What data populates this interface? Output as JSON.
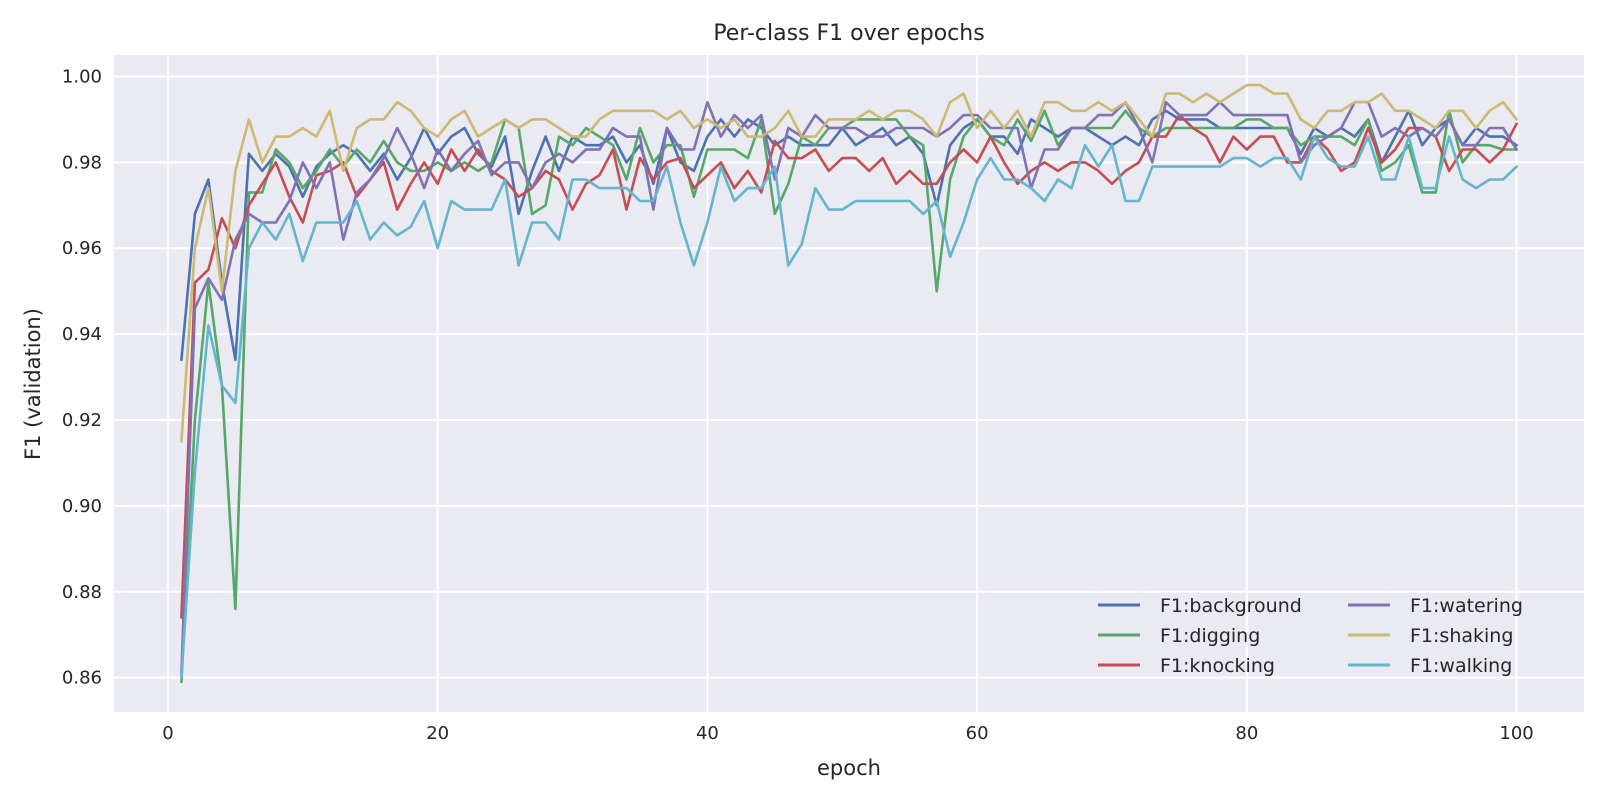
{
  "chart_data": {
    "type": "line",
    "title": "Per-class F1 over epochs",
    "xlabel": "epoch",
    "ylabel": "F1 (validation)",
    "xlim": [
      -4,
      105
    ],
    "ylim": [
      0.852,
      1.005
    ],
    "xticks": [
      0,
      20,
      40,
      60,
      80,
      100
    ],
    "yticks": [
      0.86,
      0.88,
      0.9,
      0.92,
      0.94,
      0.96,
      0.98,
      1.0
    ],
    "xtick_labels": [
      "0",
      "20",
      "40",
      "60",
      "80",
      "100"
    ],
    "ytick_labels": [
      "0.86",
      "0.88",
      "0.90",
      "0.92",
      "0.94",
      "0.96",
      "0.98",
      "1.00"
    ],
    "grid": true,
    "legend_position": "lower-right",
    "legend_columns": 2,
    "x": [
      1,
      2,
      3,
      4,
      5,
      6,
      7,
      8,
      9,
      10,
      11,
      12,
      13,
      14,
      15,
      16,
      17,
      18,
      19,
      20,
      21,
      22,
      23,
      24,
      25,
      26,
      27,
      28,
      29,
      30,
      31,
      32,
      33,
      34,
      35,
      36,
      37,
      38,
      39,
      40,
      41,
      42,
      43,
      44,
      45,
      46,
      47,
      48,
      49,
      50,
      51,
      52,
      53,
      54,
      55,
      56,
      57,
      58,
      59,
      60,
      61,
      62,
      63,
      64,
      65,
      66,
      67,
      68,
      69,
      70,
      71,
      72,
      73,
      74,
      75,
      76,
      77,
      78,
      79,
      80,
      81,
      82,
      83,
      84,
      85,
      86,
      87,
      88,
      89,
      90,
      91,
      92,
      93,
      94,
      95,
      96,
      97,
      98,
      99,
      100
    ],
    "series": [
      {
        "name": "F1:background",
        "color": "#4c72b0",
        "values": [
          0.934,
          0.968,
          0.976,
          0.952,
          0.934,
          0.982,
          0.978,
          0.982,
          0.979,
          0.972,
          0.979,
          0.982,
          0.984,
          0.982,
          0.978,
          0.982,
          0.976,
          0.981,
          0.988,
          0.982,
          0.986,
          0.988,
          0.982,
          0.979,
          0.986,
          0.968,
          0.978,
          0.986,
          0.978,
          0.986,
          0.984,
          0.984,
          0.986,
          0.98,
          0.984,
          0.975,
          0.988,
          0.98,
          0.978,
          0.986,
          0.99,
          0.986,
          0.99,
          0.988,
          0.984,
          0.986,
          0.984,
          0.984,
          0.984,
          0.988,
          0.984,
          0.986,
          0.988,
          0.984,
          0.986,
          0.982,
          0.97,
          0.984,
          0.988,
          0.99,
          0.986,
          0.986,
          0.982,
          0.99,
          0.988,
          0.986,
          0.988,
          0.988,
          0.986,
          0.984,
          0.986,
          0.984,
          0.99,
          0.992,
          0.99,
          0.99,
          0.99,
          0.988,
          0.988,
          0.988,
          0.988,
          0.988,
          0.988,
          0.982,
          0.988,
          0.986,
          0.988,
          0.986,
          0.99,
          0.98,
          0.986,
          0.992,
          0.984,
          0.988,
          0.99,
          0.984,
          0.988,
          0.986,
          0.986,
          0.984
        ]
      },
      {
        "name": "F1:digging",
        "color": "#55a868",
        "values": [
          0.859,
          0.92,
          0.952,
          0.928,
          0.876,
          0.973,
          0.973,
          0.983,
          0.98,
          0.974,
          0.978,
          0.983,
          0.979,
          0.983,
          0.98,
          0.985,
          0.98,
          0.978,
          0.978,
          0.98,
          0.978,
          0.98,
          0.978,
          0.98,
          0.99,
          0.988,
          0.968,
          0.97,
          0.986,
          0.984,
          0.988,
          0.986,
          0.984,
          0.976,
          0.988,
          0.98,
          0.984,
          0.984,
          0.972,
          0.983,
          0.983,
          0.983,
          0.981,
          0.99,
          0.968,
          0.975,
          0.986,
          0.984,
          0.988,
          0.988,
          0.99,
          0.99,
          0.99,
          0.99,
          0.986,
          0.984,
          0.95,
          0.976,
          0.986,
          0.99,
          0.986,
          0.984,
          0.99,
          0.985,
          0.992,
          0.984,
          0.988,
          0.988,
          0.988,
          0.988,
          0.992,
          0.988,
          0.986,
          0.988,
          0.988,
          0.988,
          0.988,
          0.988,
          0.988,
          0.99,
          0.99,
          0.988,
          0.988,
          0.984,
          0.986,
          0.986,
          0.986,
          0.984,
          0.99,
          0.978,
          0.98,
          0.984,
          0.973,
          0.973,
          0.992,
          0.98,
          0.984,
          0.984,
          0.983,
          0.983
        ]
      },
      {
        "name": "F1:knocking",
        "color": "#c44e52",
        "values": [
          0.874,
          0.952,
          0.955,
          0.967,
          0.96,
          0.97,
          0.975,
          0.98,
          0.972,
          0.966,
          0.977,
          0.978,
          0.98,
          0.972,
          0.976,
          0.98,
          0.969,
          0.975,
          0.98,
          0.975,
          0.983,
          0.978,
          0.983,
          0.978,
          0.976,
          0.972,
          0.974,
          0.978,
          0.976,
          0.969,
          0.975,
          0.977,
          0.983,
          0.969,
          0.981,
          0.976,
          0.98,
          0.981,
          0.974,
          0.977,
          0.98,
          0.974,
          0.978,
          0.973,
          0.985,
          0.981,
          0.981,
          0.983,
          0.978,
          0.981,
          0.981,
          0.978,
          0.981,
          0.975,
          0.978,
          0.975,
          0.975,
          0.98,
          0.983,
          0.98,
          0.986,
          0.98,
          0.975,
          0.978,
          0.98,
          0.978,
          0.98,
          0.98,
          0.978,
          0.975,
          0.978,
          0.98,
          0.986,
          0.986,
          0.991,
          0.988,
          0.986,
          0.98,
          0.986,
          0.983,
          0.986,
          0.986,
          0.98,
          0.98,
          0.986,
          0.983,
          0.978,
          0.98,
          0.988,
          0.98,
          0.983,
          0.988,
          0.988,
          0.986,
          0.978,
          0.983,
          0.983,
          0.98,
          0.983,
          0.989
        ]
      },
      {
        "name": "F1:watering",
        "color": "#8172b3",
        "values": [
          0.861,
          0.946,
          0.953,
          0.948,
          0.962,
          0.968,
          0.966,
          0.966,
          0.971,
          0.98,
          0.974,
          0.98,
          0.962,
          0.973,
          0.976,
          0.981,
          0.988,
          0.982,
          0.974,
          0.983,
          0.978,
          0.982,
          0.985,
          0.977,
          0.98,
          0.98,
          0.974,
          0.98,
          0.982,
          0.98,
          0.983,
          0.983,
          0.988,
          0.986,
          0.986,
          0.969,
          0.988,
          0.983,
          0.983,
          0.994,
          0.986,
          0.991,
          0.988,
          0.991,
          0.976,
          0.988,
          0.986,
          0.991,
          0.988,
          0.988,
          0.988,
          0.986,
          0.986,
          0.988,
          0.988,
          0.988,
          0.986,
          0.988,
          0.991,
          0.991,
          0.988,
          0.988,
          0.988,
          0.974,
          0.983,
          0.983,
          0.988,
          0.988,
          0.991,
          0.991,
          0.994,
          0.988,
          0.98,
          0.994,
          0.991,
          0.991,
          0.991,
          0.994,
          0.991,
          0.991,
          0.991,
          0.991,
          0.991,
          0.98,
          0.984,
          0.986,
          0.988,
          0.994,
          0.994,
          0.986,
          0.988,
          0.986,
          0.988,
          0.986,
          0.99,
          0.984,
          0.984,
          0.988,
          0.988,
          0.983
        ]
      },
      {
        "name": "F1:shaking",
        "color": "#ccb974",
        "values": [
          0.915,
          0.96,
          0.974,
          0.95,
          0.978,
          0.99,
          0.98,
          0.986,
          0.986,
          0.988,
          0.986,
          0.992,
          0.978,
          0.988,
          0.99,
          0.99,
          0.994,
          0.992,
          0.988,
          0.986,
          0.99,
          0.992,
          0.986,
          0.988,
          0.99,
          0.988,
          0.99,
          0.99,
          0.988,
          0.986,
          0.986,
          0.99,
          0.992,
          0.992,
          0.992,
          0.992,
          0.99,
          0.992,
          0.988,
          0.99,
          0.988,
          0.99,
          0.986,
          0.986,
          0.988,
          0.992,
          0.986,
          0.986,
          0.99,
          0.99,
          0.99,
          0.992,
          0.99,
          0.992,
          0.992,
          0.99,
          0.986,
          0.994,
          0.996,
          0.988,
          0.992,
          0.988,
          0.992,
          0.986,
          0.994,
          0.994,
          0.992,
          0.992,
          0.994,
          0.992,
          0.994,
          0.99,
          0.986,
          0.996,
          0.996,
          0.994,
          0.996,
          0.994,
          0.996,
          0.998,
          0.998,
          0.996,
          0.996,
          0.99,
          0.988,
          0.992,
          0.992,
          0.994,
          0.994,
          0.996,
          0.992,
          0.992,
          0.99,
          0.988,
          0.992,
          0.992,
          0.988,
          0.992,
          0.994,
          0.99
        ]
      },
      {
        "name": "F1:walking",
        "color": "#64b5cd",
        "values": [
          0.86,
          0.908,
          0.942,
          0.928,
          0.924,
          0.96,
          0.966,
          0.962,
          0.968,
          0.957,
          0.966,
          0.966,
          0.966,
          0.971,
          0.962,
          0.966,
          0.963,
          0.965,
          0.971,
          0.96,
          0.971,
          0.969,
          0.969,
          0.969,
          0.976,
          0.956,
          0.966,
          0.966,
          0.962,
          0.976,
          0.976,
          0.974,
          0.974,
          0.974,
          0.971,
          0.971,
          0.979,
          0.966,
          0.956,
          0.966,
          0.979,
          0.971,
          0.974,
          0.974,
          0.979,
          0.956,
          0.961,
          0.974,
          0.969,
          0.969,
          0.971,
          0.971,
          0.971,
          0.971,
          0.971,
          0.968,
          0.971,
          0.958,
          0.966,
          0.976,
          0.981,
          0.976,
          0.976,
          0.974,
          0.971,
          0.976,
          0.974,
          0.984,
          0.979,
          0.984,
          0.971,
          0.971,
          0.979,
          0.979,
          0.979,
          0.979,
          0.979,
          0.979,
          0.981,
          0.981,
          0.979,
          0.981,
          0.981,
          0.976,
          0.986,
          0.981,
          0.979,
          0.979,
          0.986,
          0.976,
          0.976,
          0.986,
          0.974,
          0.974,
          0.986,
          0.976,
          0.974,
          0.976,
          0.976,
          0.979
        ]
      }
    ]
  }
}
